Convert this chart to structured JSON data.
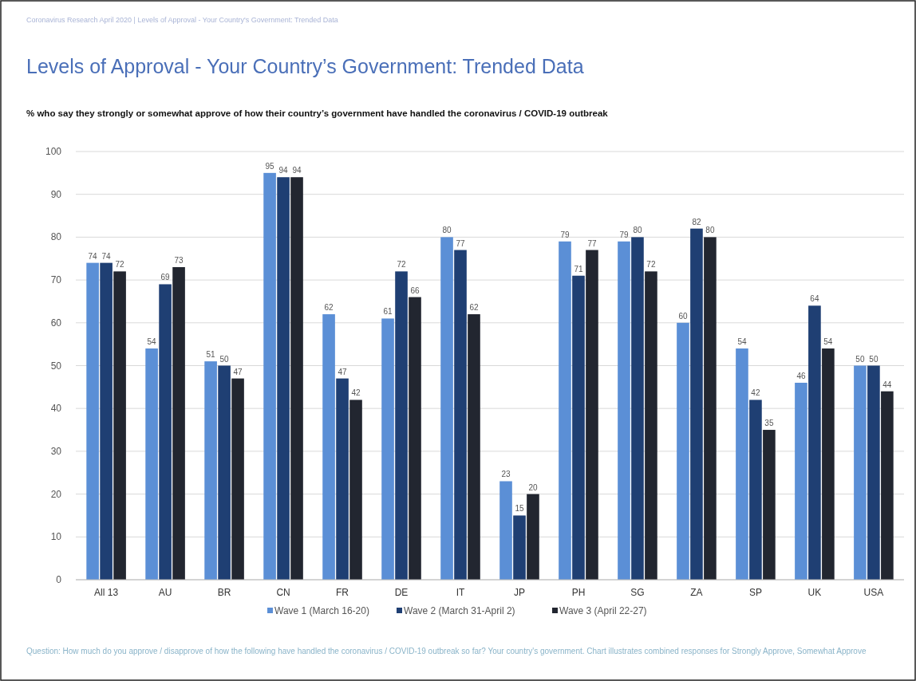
{
  "chart_data": {
    "type": "bar",
    "title": "Levels of Approval - Your Country’s Government: Trended Data",
    "subtitle": "% who say they strongly or somewhat approve of how their country’s government have handled the coronavirus / COVID-19 outbreak",
    "annotations": [
      "Coronavirus Research April 2020  |  Levels of Approval - Your Country's Government: Trended Data",
      "Question: How much do you approve / disapprove of how the following have handled the coronavirus / COVID-19 outbreak so far? Your country's government. Chart illustrates combined responses for Strongly Approve, Somewhat Approve"
    ],
    "categories": [
      "All 13",
      "AU",
      "BR",
      "CN",
      "FR",
      "DE",
      "IT",
      "JP",
      "PH",
      "SG",
      "ZA",
      "SP",
      "UK",
      "USA"
    ],
    "series": [
      {
        "name": "Wave 1 (March 16-20)",
        "color": "#5b8fd6",
        "values": [
          74,
          54,
          51,
          95,
          62,
          61,
          80,
          23,
          79,
          79,
          60,
          54,
          46,
          50
        ]
      },
      {
        "name": "Wave 2 (March 31-April 2)",
        "color": "#1f3f73",
        "values": [
          74,
          69,
          50,
          94,
          47,
          72,
          77,
          15,
          71,
          80,
          82,
          42,
          64,
          50
        ]
      },
      {
        "name": "Wave 3 (April 22-27)",
        "color": "#222630",
        "values": [
          72,
          73,
          47,
          94,
          42,
          66,
          62,
          20,
          77,
          72,
          80,
          35,
          54,
          44
        ]
      }
    ],
    "ylim": [
      0,
      100
    ],
    "yticks": [
      0,
      10,
      20,
      30,
      40,
      50,
      60,
      70,
      80,
      90,
      100
    ],
    "grid": "y",
    "legend": "bottom",
    "data_labels": true
  }
}
